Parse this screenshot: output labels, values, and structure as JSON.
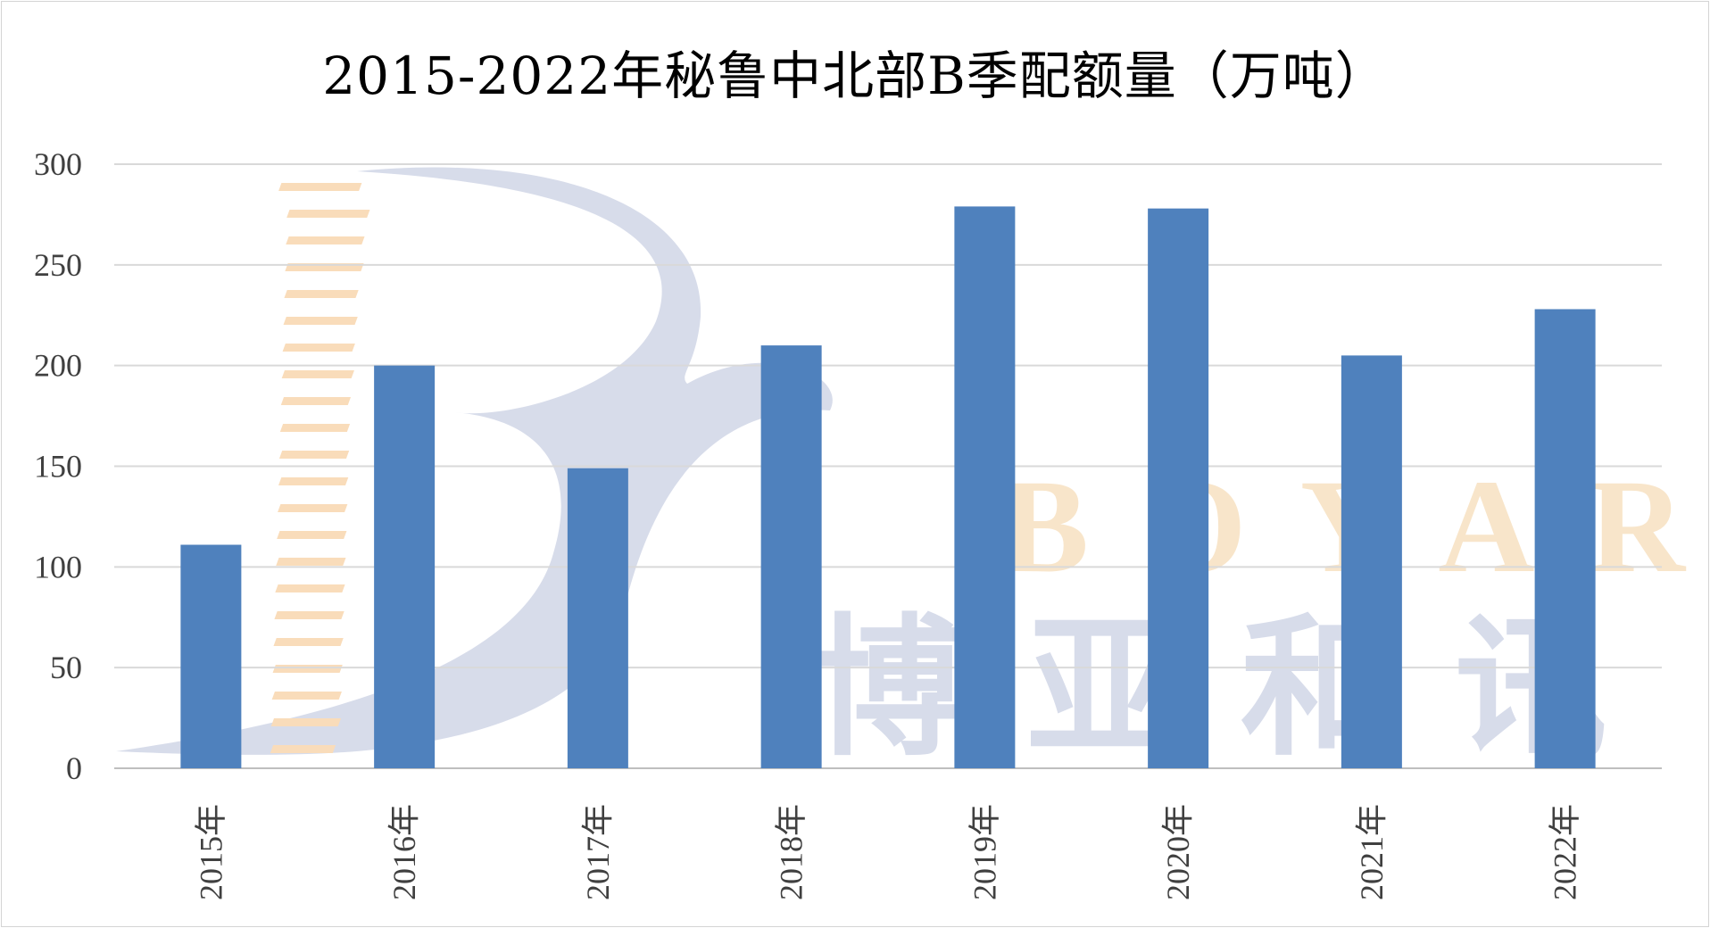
{
  "chart_data": {
    "type": "bar",
    "title": "2015-2022年秘鲁中北部B季配额量（万吨）",
    "categories": [
      "2015年",
      "2016年",
      "2017年",
      "2018年",
      "2019年",
      "2020年",
      "2021年",
      "2022年"
    ],
    "values": [
      111,
      200,
      149,
      210,
      279,
      278,
      205,
      228
    ],
    "ylim": [
      0,
      300
    ],
    "yticks": [
      0,
      50,
      100,
      150,
      200,
      250,
      300
    ],
    "grid": true,
    "legend": "none",
    "bar_color": "#4f81bd"
  },
  "watermark": {
    "latin": "BOYAR",
    "cjk": "博亚和讯"
  }
}
